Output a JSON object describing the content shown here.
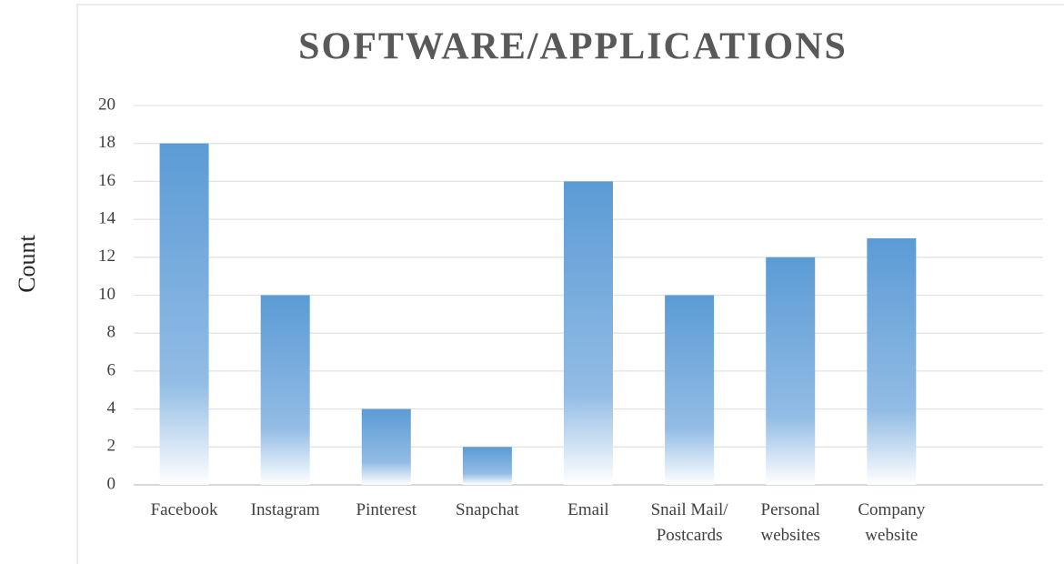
{
  "chart_data": {
    "type": "bar",
    "title": "SOFTWARE/APPLICATIONS",
    "y_label": "Count",
    "categories": [
      "Facebook",
      "Instagram",
      "Pinterest",
      "Snapchat",
      "Email",
      "Snail Mail/\nPostcards",
      "Personal\nwebsites",
      "Company\nwebsite",
      null
    ],
    "values": [
      18,
      10,
      4,
      2,
      16,
      10,
      12,
      13,
      null
    ],
    "color": "#5b9bd5",
    "ylim": [
      0,
      20
    ],
    "yticks": [
      0,
      2,
      4,
      6,
      8,
      10,
      12,
      14,
      16,
      18,
      20
    ],
    "grid": true
  }
}
